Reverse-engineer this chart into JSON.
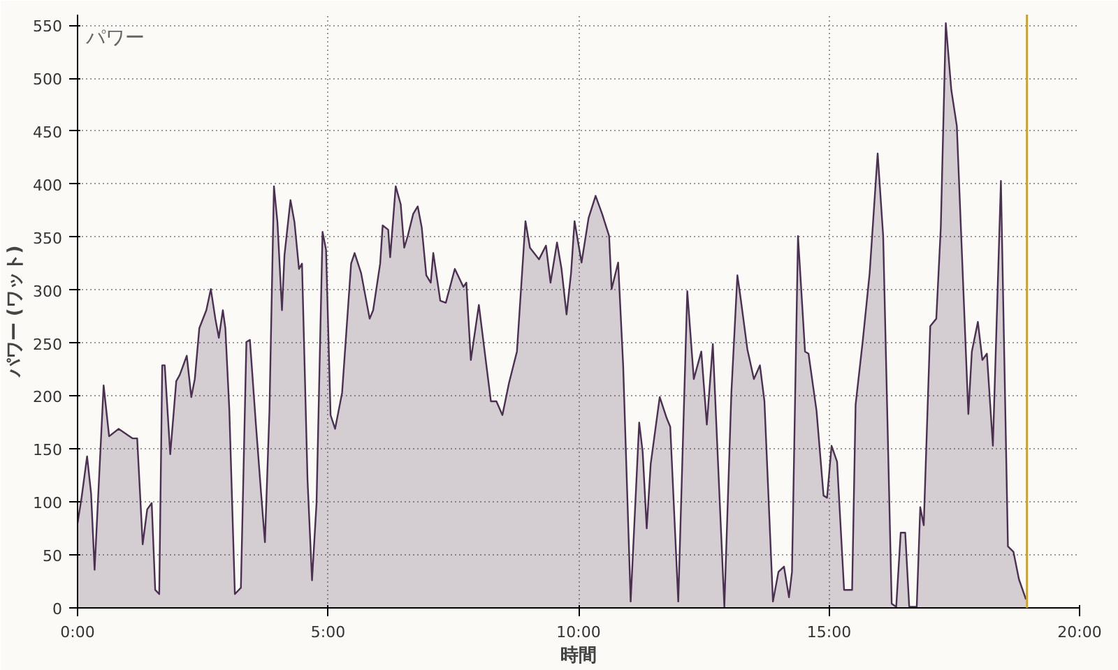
{
  "chart_data": {
    "type": "area",
    "title": "パワー",
    "xlabel": "時間",
    "ylabel": "パワー (ワット)",
    "x": [
      0,
      0.08,
      0.19,
      0.27,
      0.34,
      0.52,
      0.63,
      0.82,
      1.1,
      1.19,
      1.3,
      1.39,
      1.48,
      1.55,
      1.63,
      1.69,
      1.74,
      1.85,
      1.97,
      2.04,
      2.18,
      2.27,
      2.34,
      2.43,
      2.57,
      2.66,
      2.75,
      2.82,
      2.9,
      2.95,
      3.03,
      3.14,
      3.26,
      3.37,
      3.44,
      3.56,
      3.67,
      3.74,
      3.83,
      3.92,
      3.99,
      4.08,
      4.13,
      4.25,
      4.33,
      4.42,
      4.48,
      4.59,
      4.68,
      4.77,
      4.89,
      4.96,
      5.05,
      5.14,
      5.28,
      5.46,
      5.53,
      5.66,
      5.83,
      5.9,
      6.04,
      6.09,
      6.2,
      6.24,
      6.35,
      6.45,
      6.52,
      6.59,
      6.7,
      6.79,
      6.87,
      6.96,
      7.05,
      7.1,
      7.24,
      7.35,
      7.53,
      7.7,
      7.76,
      7.85,
      8.01,
      8.16,
      8.25,
      8.36,
      8.48,
      8.61,
      8.77,
      8.94,
      9.03,
      9.21,
      9.35,
      9.44,
      9.57,
      9.66,
      9.76,
      9.85,
      9.92,
      10.06,
      10.2,
      10.34,
      10.47,
      10.61,
      10.66,
      10.79,
      10.89,
      11.04,
      11.21,
      11.28,
      11.36,
      11.44,
      11.62,
      11.76,
      11.83,
      11.99,
      12.17,
      12.3,
      12.45,
      12.56,
      12.68,
      12.91,
      13.05,
      13.17,
      13.23,
      13.37,
      13.5,
      13.62,
      13.71,
      13.88,
      13.99,
      14.1,
      14.2,
      14.26,
      14.38,
      14.52,
      14.59,
      14.75,
      14.89,
      14.96,
      15.05,
      15.16,
      15.3,
      15.46,
      15.53,
      15.67,
      15.81,
      15.97,
      16.08,
      16.25,
      16.34,
      16.43,
      16.52,
      16.6,
      16.75,
      16.82,
      16.89,
      17.02,
      17.14,
      17.23,
      17.33,
      17.44,
      17.55,
      17.78,
      17.85,
      17.97,
      18.06,
      18.15,
      18.27,
      18.43,
      18.57,
      18.68,
      18.79,
      18.93
    ],
    "series": [
      {
        "color": "#4b3052",
        "values": [
          80,
          104,
          143,
          108,
          36,
          210,
          162,
          169,
          160,
          160,
          60,
          93,
          99,
          17,
          13,
          229,
          229,
          145,
          214,
          220,
          238,
          199,
          216,
          264,
          281,
          301,
          273,
          255,
          281,
          264,
          186,
          13,
          19,
          251,
          253,
          173,
          104,
          62,
          186,
          398,
          364,
          281,
          333,
          385,
          364,
          320,
          325,
          121,
          26,
          99,
          355,
          338,
          182,
          169,
          203,
          325,
          335,
          316,
          273,
          281,
          325,
          361,
          357,
          331,
          398,
          381,
          340,
          351,
          372,
          379,
          359,
          314,
          307,
          335,
          290,
          288,
          320,
          303,
          307,
          234,
          286,
          229,
          195,
          195,
          182,
          212,
          242,
          365,
          340,
          329,
          342,
          307,
          345,
          320,
          277,
          316,
          365,
          326,
          368,
          389,
          372,
          351,
          301,
          326,
          229,
          6,
          175,
          147,
          75,
          136,
          199,
          179,
          171,
          6,
          299,
          216,
          242,
          173,
          249,
          1,
          203,
          314,
          294,
          244,
          216,
          229,
          195,
          6,
          34,
          39,
          10,
          34,
          351,
          242,
          240,
          186,
          106,
          104,
          153,
          138,
          17,
          17,
          192,
          251,
          316,
          429,
          351,
          4,
          1,
          71,
          71,
          1,
          1,
          95,
          78,
          266,
          273,
          359,
          552,
          489,
          455,
          183,
          242,
          270,
          234,
          240,
          153,
          403,
          58,
          53,
          27,
          8
        ]
      }
    ],
    "xlim": [
      0,
      20
    ],
    "ylim": [
      0,
      560
    ],
    "xticks": [
      {
        "value": 0,
        "label": "0:00"
      },
      {
        "value": 5,
        "label": "5:00"
      },
      {
        "value": 10,
        "label": "10:00"
      },
      {
        "value": 15,
        "label": "15:00"
      },
      {
        "value": 20,
        "label": "20:00"
      }
    ],
    "yticks": [
      0,
      50,
      100,
      150,
      200,
      250,
      300,
      350,
      400,
      450,
      500,
      550
    ],
    "grid": true,
    "ref_lines": [
      {
        "axis": "x",
        "value": 18.95,
        "color": "#c8a038"
      }
    ]
  }
}
